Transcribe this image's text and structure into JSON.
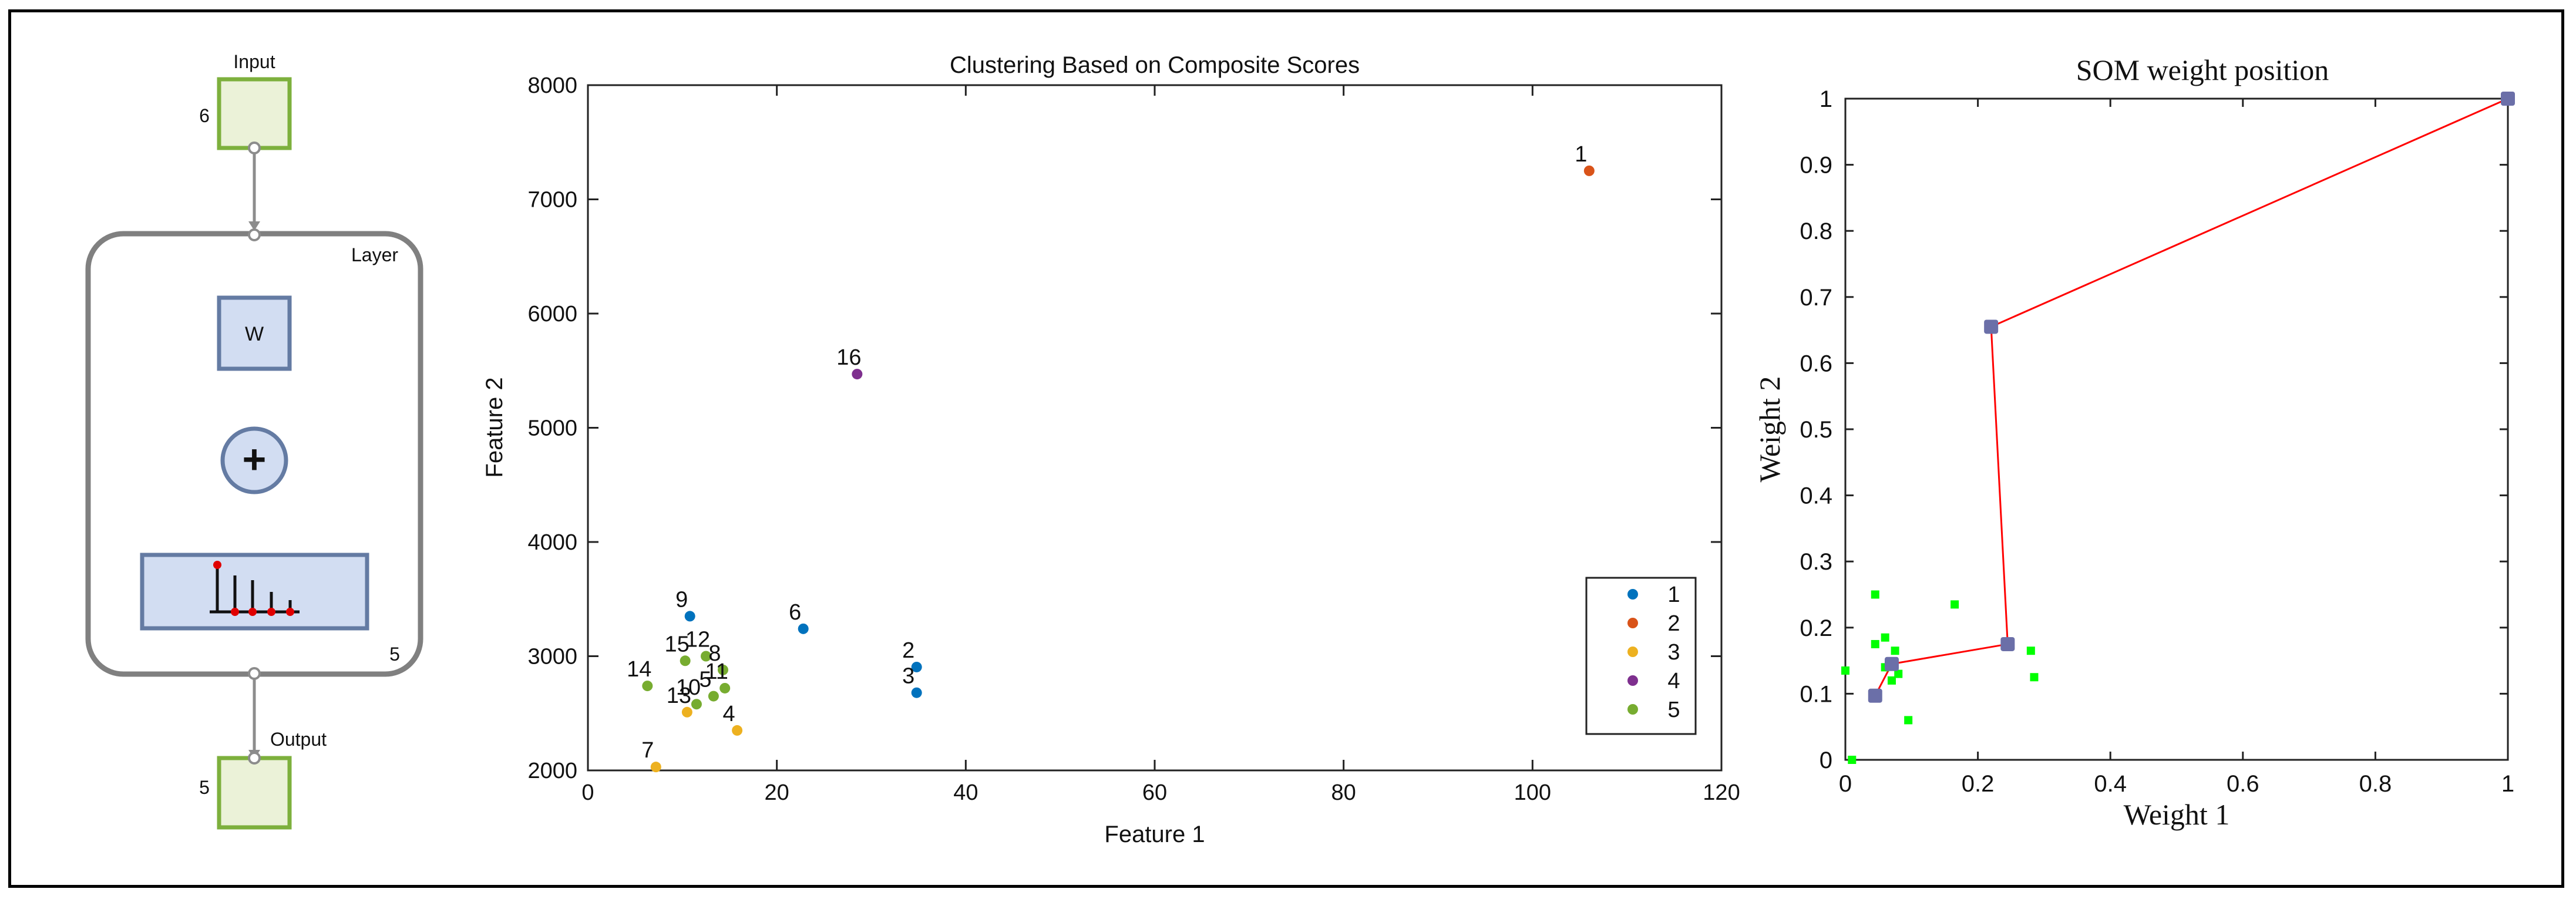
{
  "network": {
    "input_label": "Input",
    "input_size": "6",
    "layer_label": "Layer",
    "layer_size": "5",
    "weight_label": "W",
    "sum_symbol": "+",
    "output_label": "Output",
    "output_size": "5"
  },
  "chart_data": [
    {
      "type": "scatter",
      "title": "Clustering Based on Composite Scores",
      "xlabel": "Feature 1",
      "ylabel": "Feature 2",
      "xlim": [
        0,
        120
      ],
      "ylim": [
        2000,
        8000
      ],
      "xticks": [
        0,
        20,
        40,
        60,
        80,
        100,
        120
      ],
      "yticks": [
        2000,
        3000,
        4000,
        5000,
        6000,
        7000,
        8000
      ],
      "grid": false,
      "legend_position": "bottom-right",
      "series": [
        {
          "name": "1",
          "color": "#0072BD",
          "points": [
            {
              "label": "2",
              "x": 34.8,
              "y": 2905
            },
            {
              "label": "3",
              "x": 34.8,
              "y": 2680
            },
            {
              "label": "6",
              "x": 22.8,
              "y": 3240
            },
            {
              "label": "9",
              "x": 10.8,
              "y": 3350
            }
          ]
        },
        {
          "name": "2",
          "color": "#D95319",
          "points": [
            {
              "label": "1",
              "x": 106,
              "y": 7250
            }
          ]
        },
        {
          "name": "3",
          "color": "#EDB120",
          "points": [
            {
              "label": "4",
              "x": 15.8,
              "y": 2350
            },
            {
              "label": "7",
              "x": 7.2,
              "y": 2030
            },
            {
              "label": "13",
              "x": 10.5,
              "y": 2510
            }
          ]
        },
        {
          "name": "4",
          "color": "#7E2F8E",
          "points": [
            {
              "label": "16",
              "x": 28.5,
              "y": 5470
            }
          ]
        },
        {
          "name": "5",
          "color": "#77AC30",
          "points": [
            {
              "label": "14",
              "x": 6.3,
              "y": 2740
            },
            {
              "label": "15",
              "x": 10.3,
              "y": 2960
            },
            {
              "label": "12",
              "x": 12.5,
              "y": 3000
            },
            {
              "label": "8",
              "x": 14.3,
              "y": 2880
            },
            {
              "label": "11",
              "x": 14.5,
              "y": 2720
            },
            {
              "label": "10",
              "x": 11.5,
              "y": 2580
            },
            {
              "label": "5",
              "x": 13.3,
              "y": 2650
            }
          ]
        }
      ]
    },
    {
      "type": "scatter",
      "title": "SOM weight position",
      "xlabel": "Weight 1",
      "ylabel": "Weight 2",
      "xlim": [
        0,
        1
      ],
      "ylim": [
        0,
        1
      ],
      "xticks": [
        0,
        0.2,
        0.4,
        0.6,
        0.8,
        1
      ],
      "yticks": [
        0,
        0.1,
        0.2,
        0.3,
        0.4,
        0.5,
        0.6,
        0.7,
        0.8,
        0.9,
        1
      ],
      "grid": false,
      "input_color": "#00FF00",
      "neuron_color": "#6B6FA8",
      "link_color": "#FF0000",
      "inputs": [
        {
          "x": 0.0,
          "y": 0.135
        },
        {
          "x": 0.01,
          "y": 0.0
        },
        {
          "x": 0.045,
          "y": 0.25
        },
        {
          "x": 0.045,
          "y": 0.175
        },
        {
          "x": 0.06,
          "y": 0.185
        },
        {
          "x": 0.075,
          "y": 0.165
        },
        {
          "x": 0.06,
          "y": 0.14
        },
        {
          "x": 0.08,
          "y": 0.13
        },
        {
          "x": 0.07,
          "y": 0.12
        },
        {
          "x": 0.095,
          "y": 0.06
        },
        {
          "x": 0.165,
          "y": 0.235
        },
        {
          "x": 0.28,
          "y": 0.165
        },
        {
          "x": 0.285,
          "y": 0.125
        },
        {
          "x": 0.045,
          "y": 0.1
        },
        {
          "x": 1.0,
          "y": 1.0
        }
      ],
      "neurons": [
        {
          "x": 1.0,
          "y": 1.0
        },
        {
          "x": 0.22,
          "y": 0.655
        },
        {
          "x": 0.245,
          "y": 0.175
        },
        {
          "x": 0.07,
          "y": 0.145
        },
        {
          "x": 0.045,
          "y": 0.097
        }
      ]
    }
  ]
}
